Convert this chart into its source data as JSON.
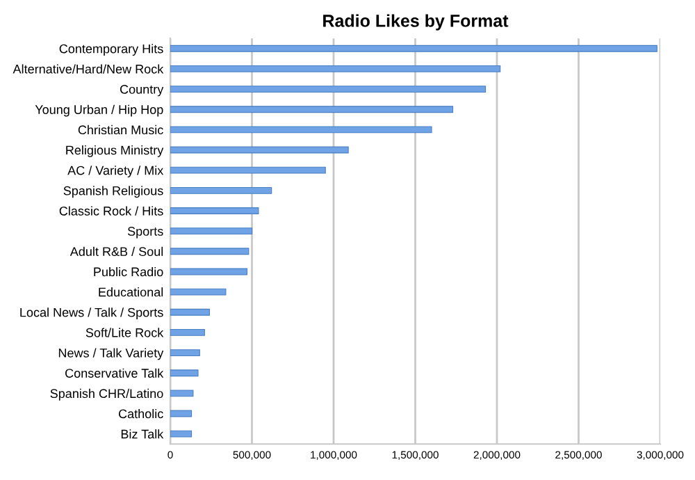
{
  "chart_data": {
    "type": "bar",
    "orientation": "horizontal",
    "title": "Radio Likes by Format",
    "categories": [
      "Contemporary Hits",
      "Alternative/Hard/New Rock",
      "Country",
      "Young Urban / Hip Hop",
      "Christian Music",
      "Religious Ministry",
      "AC / Variety / Mix",
      "Spanish Religious",
      "Classic Rock / Hits",
      "Sports",
      "Adult R&B / Soul",
      "Public Radio",
      "Educational",
      "Local News / Talk / Sports",
      "Soft/Lite Rock",
      "News / Talk Variety",
      "Conservative Talk",
      "Spanish CHR/Latino",
      "Catholic",
      "Biz Talk"
    ],
    "values": [
      2980000,
      2020000,
      1930000,
      1730000,
      1600000,
      1090000,
      950000,
      620000,
      540000,
      500000,
      480000,
      470000,
      340000,
      240000,
      210000,
      180000,
      170000,
      140000,
      130000,
      130000
    ],
    "color": "#6fa3e6",
    "xlim": [
      0,
      3000000
    ],
    "xticks": [
      {
        "value": 0,
        "label": "0"
      },
      {
        "value": 500000,
        "label": "500,000"
      },
      {
        "value": 1000000,
        "label": "1,000,000"
      },
      {
        "value": 1500000,
        "label": "1,500,000"
      },
      {
        "value": 2000000,
        "label": "2,000,000"
      },
      {
        "value": 2500000,
        "label": "2,500,000"
      },
      {
        "value": 3000000,
        "label": "3,000,000"
      }
    ],
    "grid": "x"
  }
}
